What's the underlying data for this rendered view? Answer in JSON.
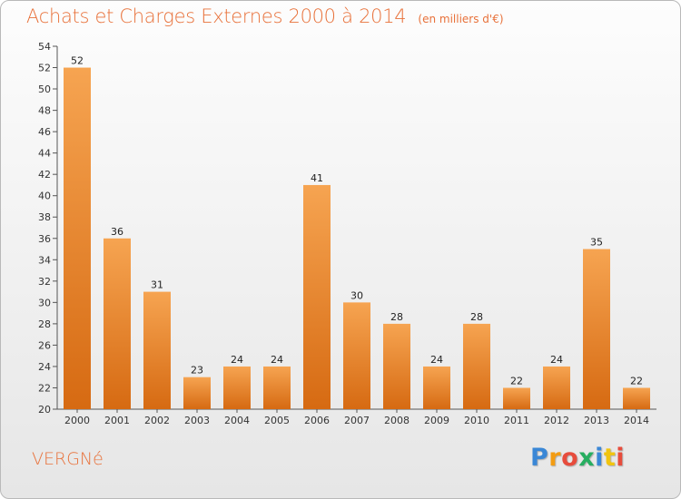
{
  "header": {
    "title": "Achats et Charges Externes 2000 à 2014",
    "subtitle": "(en milliers d'€)"
  },
  "footer": {
    "commune": "VERGNé",
    "logo_letters": [
      "P",
      "r",
      "o",
      "x",
      "i",
      "t",
      "i"
    ],
    "logo_colors": [
      "#3a87d6",
      "#f39c12",
      "#e74c3c",
      "#27ae60",
      "#3a87d6",
      "#f1c40f",
      "#e74c3c"
    ]
  },
  "colors": {
    "bar_light": "#f6a451",
    "bar_dark": "#d66a12",
    "axis": "#555555",
    "grid": "#e2e2e2",
    "title": "#e8713a"
  },
  "chart_data": {
    "type": "bar",
    "title": "Achats et Charges Externes 2000 à 2014",
    "subtitle": "(en milliers d'€)",
    "xlabel": "",
    "ylabel": "",
    "categories": [
      "2000",
      "2001",
      "2002",
      "2003",
      "2004",
      "2005",
      "2006",
      "2007",
      "2008",
      "2009",
      "2010",
      "2011",
      "2012",
      "2013",
      "2014"
    ],
    "values": [
      52,
      36,
      31,
      23,
      24,
      24,
      41,
      30,
      28,
      24,
      28,
      22,
      24,
      35,
      22
    ],
    "ylim": [
      20,
      54
    ],
    "yticks": [
      20,
      22,
      24,
      26,
      28,
      30,
      32,
      34,
      36,
      38,
      40,
      42,
      44,
      46,
      48,
      50,
      52,
      54
    ],
    "grid": false,
    "legend": "none"
  }
}
